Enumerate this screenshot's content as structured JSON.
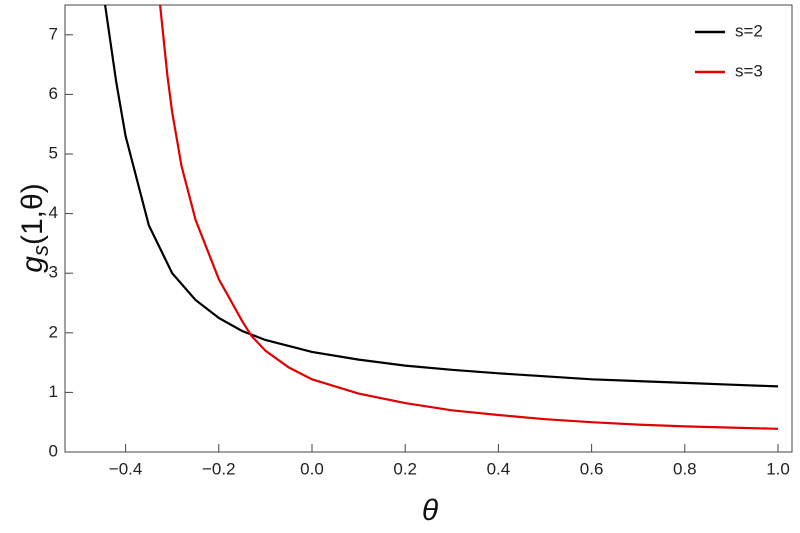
{
  "chart_data": {
    "type": "line",
    "xlabel": "θ",
    "ylabel": [
      "g",
      "s",
      "(1,θ)"
    ],
    "xlim": [
      -0.53,
      1.03
    ],
    "ylim": [
      0,
      7.5
    ],
    "xticks": [
      {
        "value": -0.4,
        "label": "−0.4"
      },
      {
        "value": -0.2,
        "label": "−0.2"
      },
      {
        "value": 0,
        "label": "0.0"
      },
      0.2,
      0.4,
      0.6,
      0.8,
      {
        "value": 1,
        "label": "1.0"
      }
    ],
    "yticks": [
      0,
      1,
      2,
      3,
      4,
      5,
      6,
      7
    ],
    "legend": "top-right",
    "series": [
      {
        "name": "s=2",
        "color": "#000000",
        "x": [
          -0.444,
          -0.42,
          -0.4,
          -0.35,
          -0.3,
          -0.25,
          -0.2,
          -0.15,
          -0.1,
          0,
          0.1,
          0.2,
          0.3,
          0.4,
          0.5,
          0.6,
          0.7,
          0.8,
          0.9,
          1.0
        ],
        "values": [
          7.5,
          6.2,
          5.3,
          3.8,
          3.0,
          2.55,
          2.25,
          2.03,
          1.88,
          1.68,
          1.55,
          1.45,
          1.38,
          1.32,
          1.27,
          1.22,
          1.19,
          1.16,
          1.13,
          1.1
        ]
      },
      {
        "name": "s=3",
        "color": "#e00000",
        "x": [
          -0.326,
          -0.31,
          -0.3,
          -0.28,
          -0.25,
          -0.2,
          -0.15,
          -0.13,
          -0.1,
          -0.05,
          0,
          0.1,
          0.2,
          0.3,
          0.4,
          0.5,
          0.6,
          0.7,
          0.8,
          0.9,
          1.0
        ],
        "values": [
          7.5,
          6.3,
          5.7,
          4.8,
          3.9,
          2.9,
          2.2,
          1.95,
          1.7,
          1.42,
          1.22,
          0.98,
          0.82,
          0.7,
          0.62,
          0.55,
          0.5,
          0.46,
          0.43,
          0.41,
          0.39
        ]
      }
    ]
  }
}
